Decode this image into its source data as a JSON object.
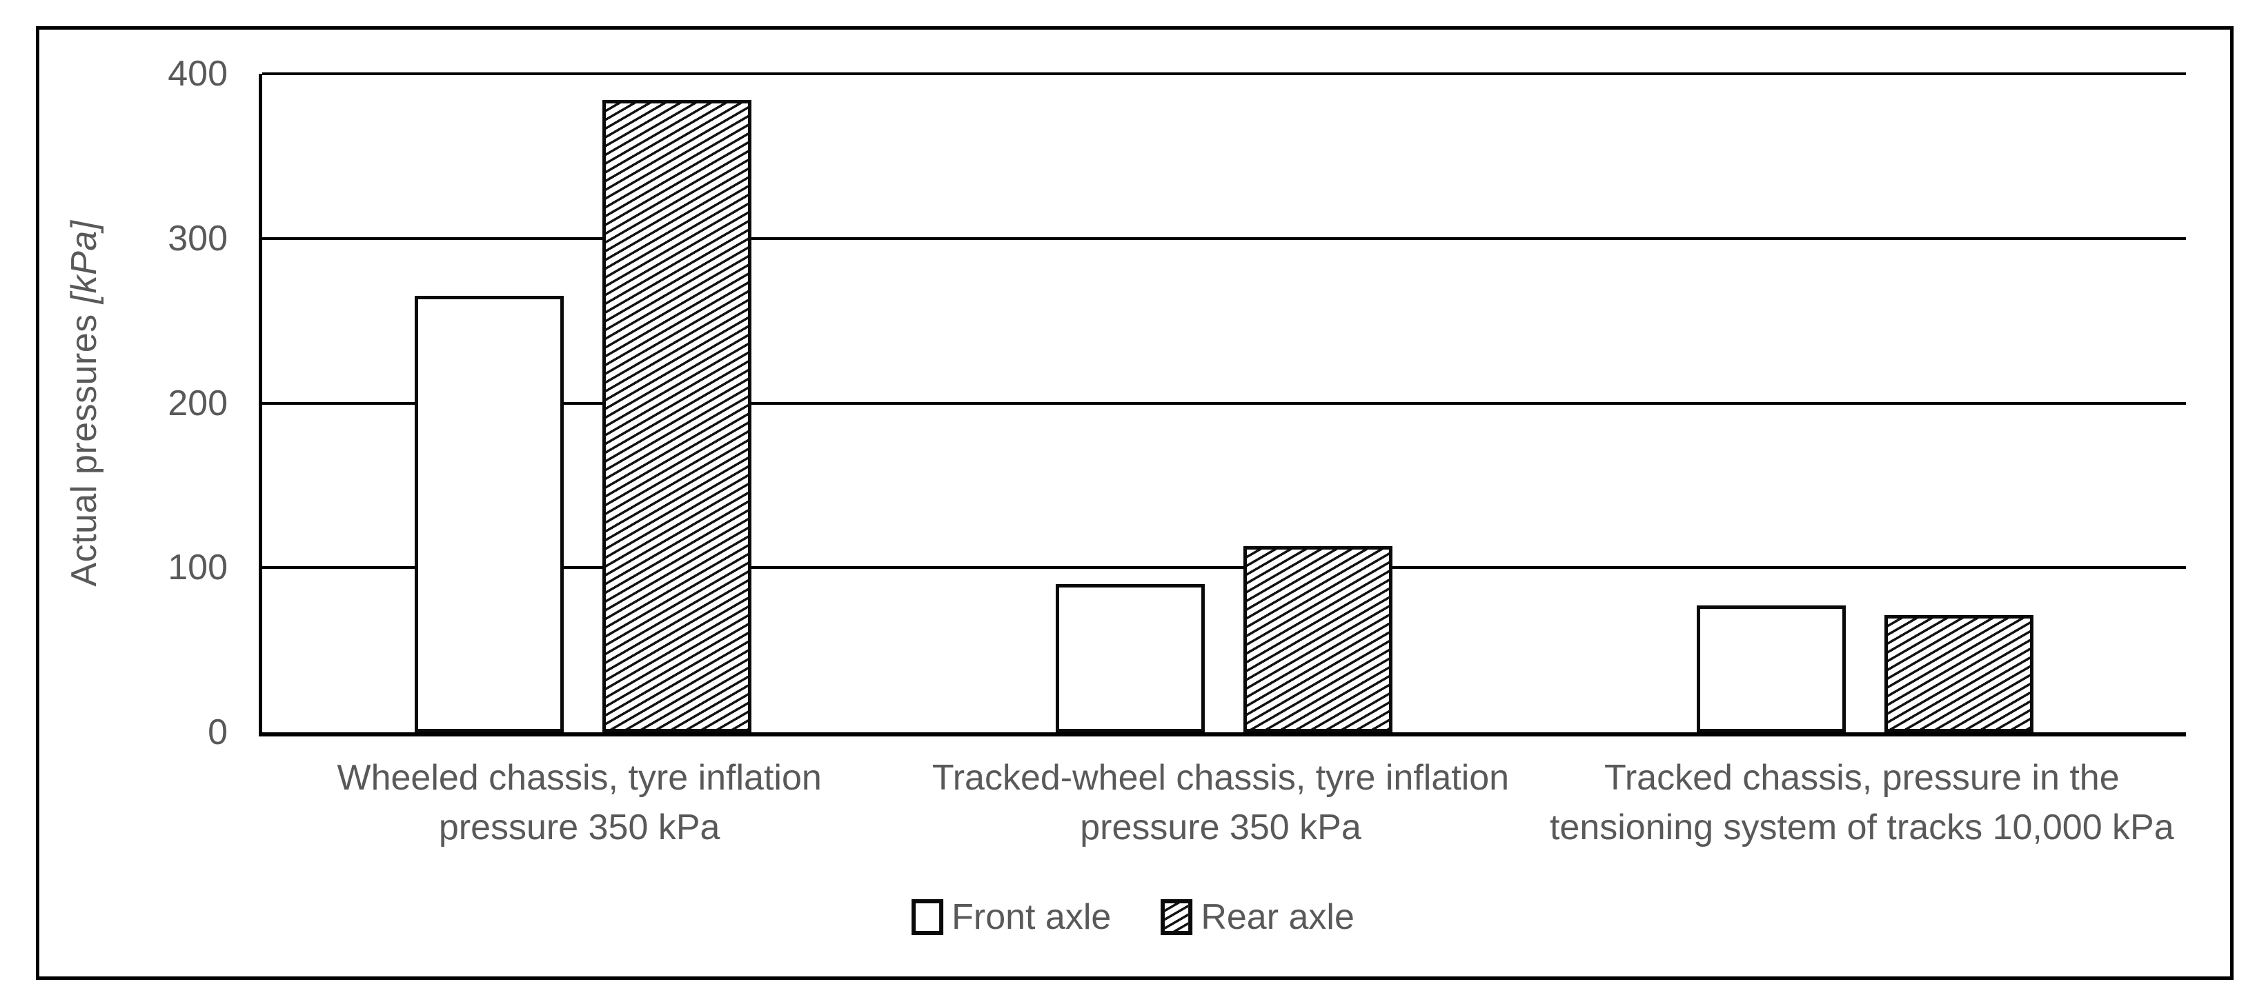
{
  "chart": {
    "y_axis_title_text": "Actual pressures ",
    "y_axis_title_unit": "[kPa]"
  },
  "chart_data": {
    "type": "bar",
    "title": "",
    "xlabel": "",
    "ylabel": "Actual pressures [kPa]",
    "ylim": [
      0,
      400
    ],
    "yticks": [
      0,
      100,
      200,
      300,
      400
    ],
    "ytick_labels_top_to_bottom": [
      "400",
      "300",
      "200",
      "100",
      "0"
    ],
    "grid": true,
    "legend_position": "bottom",
    "categories": [
      "Wheeled chassis, tyre inflation pressure 350 kPa",
      "Tracked-wheel chassis, tyre inflation pressure 350 kPa",
      "Tracked chassis, pressure in the tensioning system of tracks 10,000 kPa"
    ],
    "categories_lines": [
      [
        "Wheeled chassis, tyre inflation",
        "pressure 350 kPa"
      ],
      [
        "Tracked-wheel chassis, tyre inflation",
        "pressure 350 kPa"
      ],
      [
        "Tracked chassis, pressure in the",
        "tensioning system of tracks 10,000 kPa"
      ]
    ],
    "series": [
      {
        "name": "Front axle",
        "pattern": "solid-white",
        "values": [
          265,
          90,
          77
        ]
      },
      {
        "name": "Rear axle",
        "pattern": "diagonal-hatch",
        "values": [
          384,
          113,
          71
        ]
      }
    ],
    "legend": [
      {
        "label": "Front axle",
        "pattern": "solid-white"
      },
      {
        "label": "Rear axle",
        "pattern": "diagonal-hatch"
      }
    ],
    "colors": {
      "text_gray": "#595959",
      "line_black": "#000000",
      "bar_fill_white": "#ffffff",
      "hatch_foreground": "#121212"
    }
  }
}
